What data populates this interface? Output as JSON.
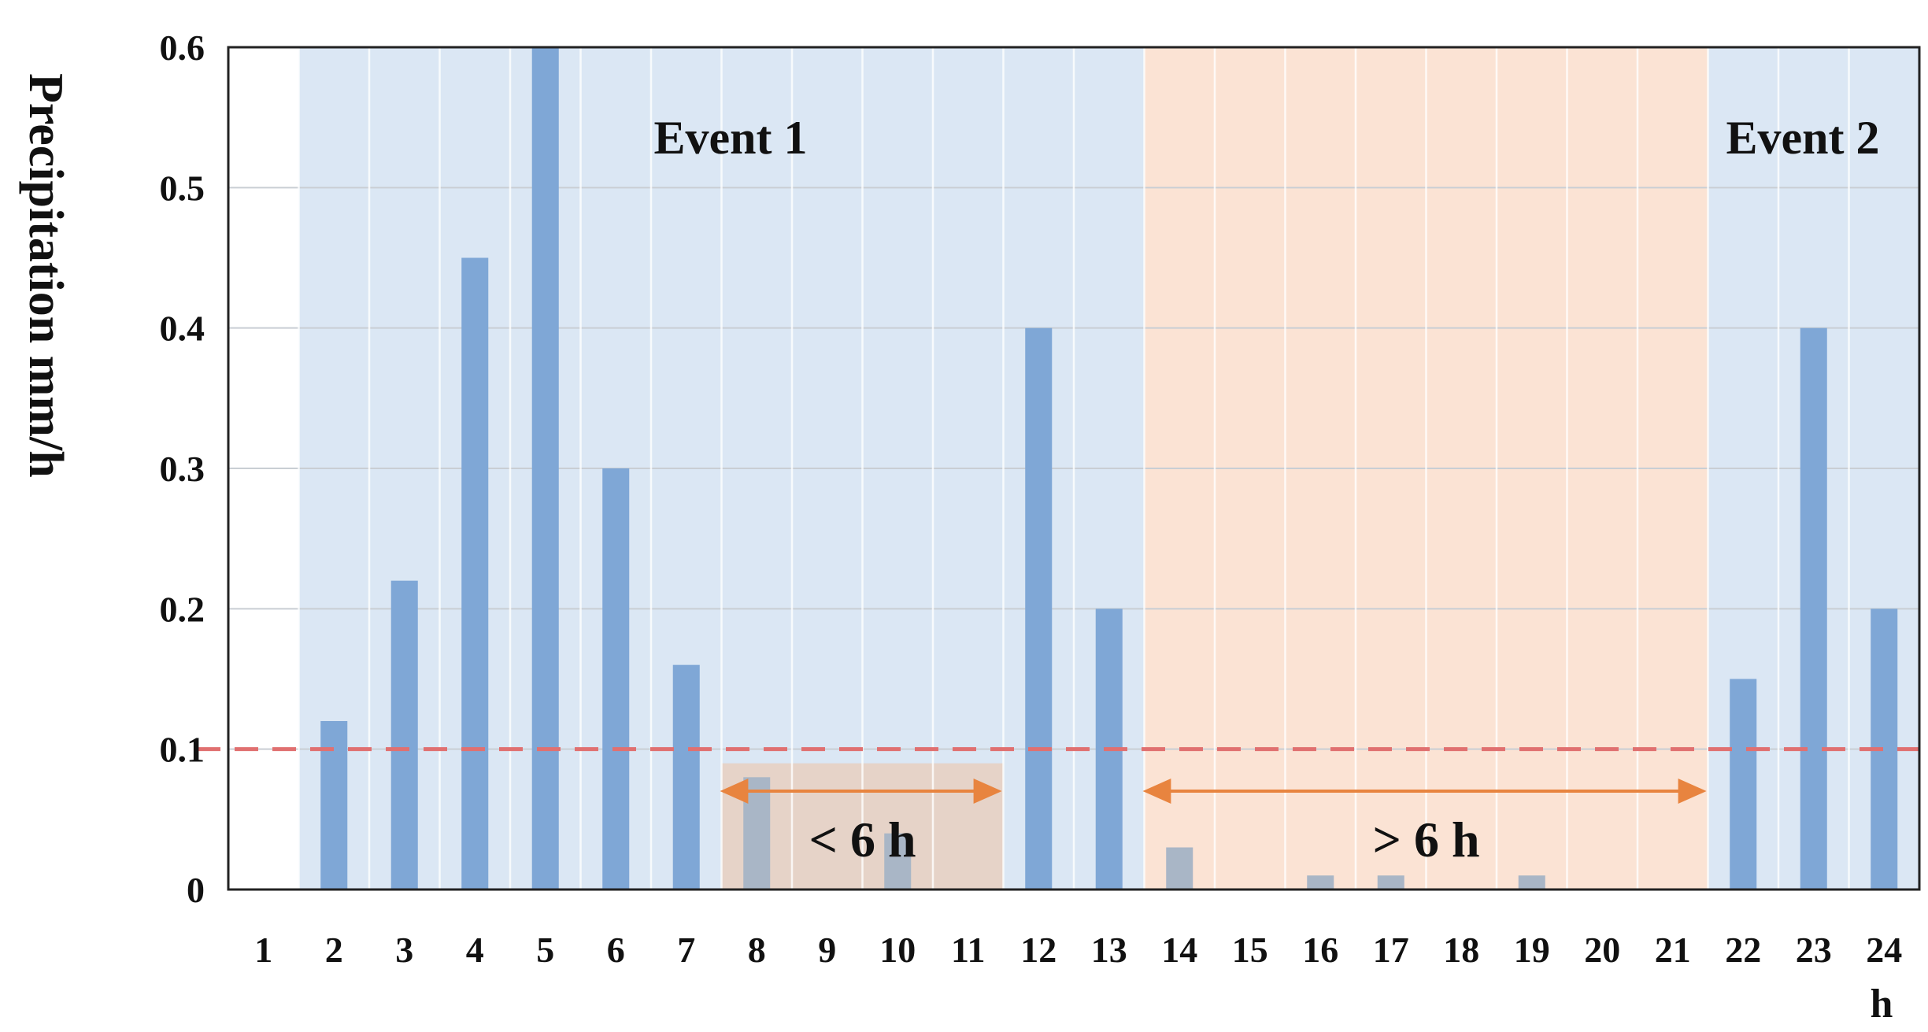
{
  "chart_data": {
    "type": "bar",
    "ylabel": "Precipitation mm/h",
    "xlabel": "h",
    "categories": [
      "1",
      "2",
      "3",
      "4",
      "5",
      "6",
      "7",
      "8",
      "9",
      "10",
      "11",
      "12",
      "13",
      "14",
      "15",
      "16",
      "17",
      "18",
      "19",
      "20",
      "21",
      "22",
      "23",
      "24"
    ],
    "values": [
      0,
      0.12,
      0.22,
      0.45,
      0.6,
      0.3,
      0.16,
      0.08,
      0,
      0.04,
      0,
      0.4,
      0.2,
      0.03,
      0,
      0.01,
      0.01,
      0,
      0.01,
      0,
      0,
      0.15,
      0.4,
      0.2
    ],
    "ylim": [
      0,
      0.6
    ],
    "yticks": [
      "0",
      "0.1",
      "0.2",
      "0.3",
      "0.4",
      "0.5",
      "0.6"
    ],
    "ytick_values": [
      0,
      0.1,
      0.2,
      0.3,
      0.4,
      0.5,
      0.6
    ],
    "threshold": 0.1,
    "regions": [
      {
        "label": "Event 1",
        "from": "2",
        "to": "13",
        "color": "#dbe7f4"
      },
      {
        "label": "",
        "from": "14",
        "to": "21",
        "color": "#fbe3d4"
      },
      {
        "label": "Event 2",
        "from": "22",
        "to": "24",
        "color": "#dbe7f4"
      }
    ],
    "annotations": [
      {
        "label": "< 6 h",
        "from": "8",
        "to": "11"
      },
      {
        "label": "> 6 h",
        "from": "14",
        "to": "21"
      }
    ],
    "colors": {
      "bar": "#7fa7d6",
      "bar_below": "#a9b6c6",
      "threshold": "#e07070",
      "arrow": "#e8843f",
      "gap_fill": "#e8cfc0",
      "grid": "#c9ced4"
    },
    "grid": true
  }
}
